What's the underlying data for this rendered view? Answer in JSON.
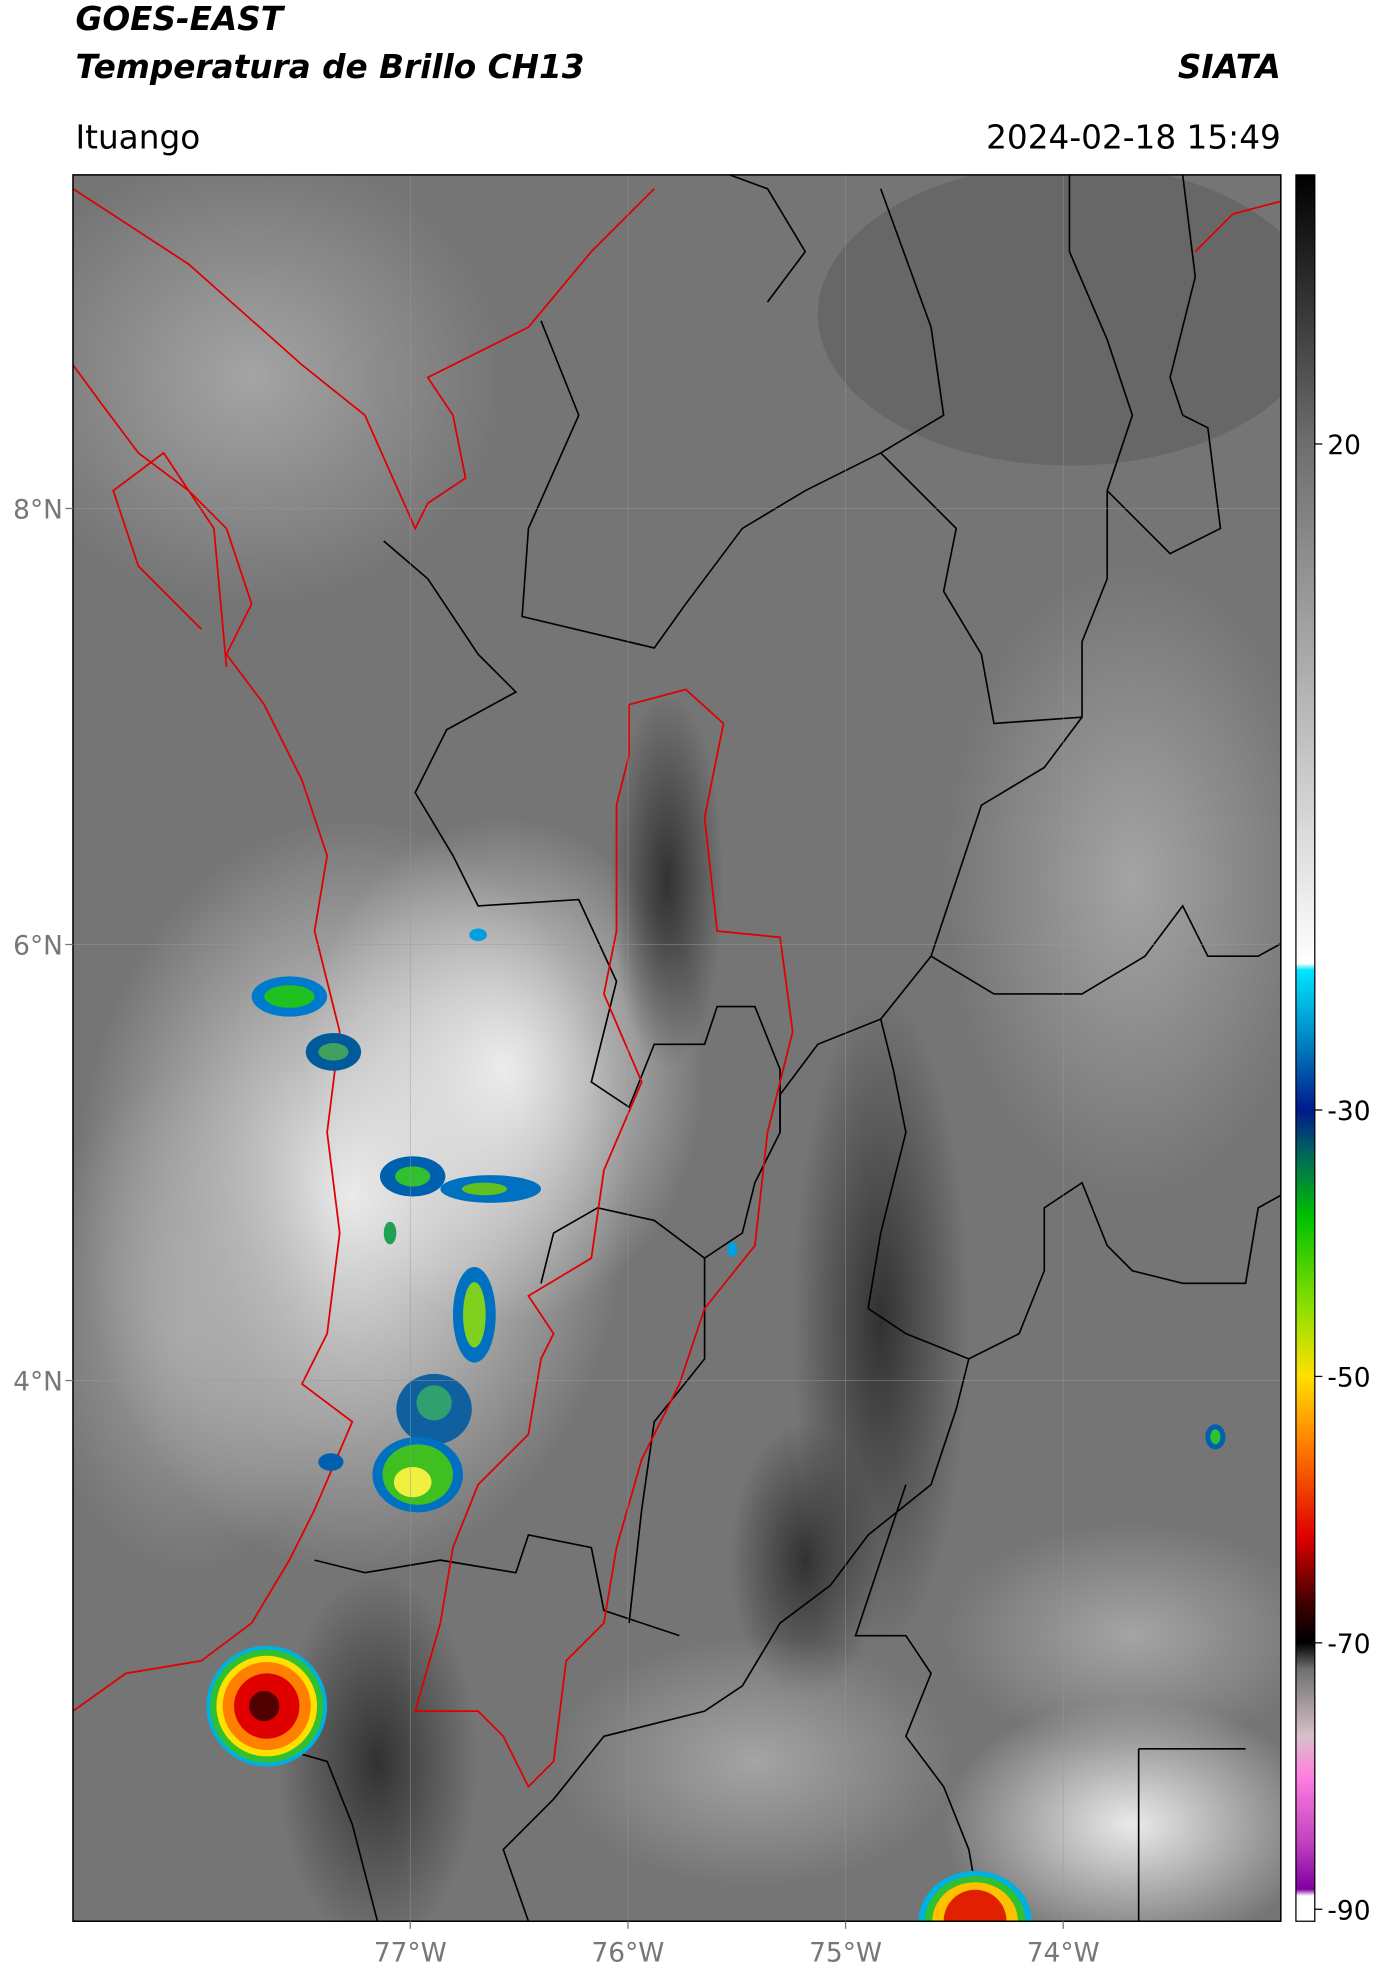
{
  "header": {
    "title": "GOES-EAST",
    "subtitle": "Temperatura de Brillo CH13",
    "source": "SIATA",
    "location": "Ituango",
    "datetime": "2024-02-18 15:49"
  },
  "map": {
    "xlim": [
      -78.55,
      -73.0
    ],
    "ylim": [
      1.52,
      9.53
    ],
    "xticks": [
      {
        "value": -77,
        "label": "77°W"
      },
      {
        "value": -76,
        "label": "76°W"
      },
      {
        "value": -75,
        "label": "75°W"
      },
      {
        "value": -74,
        "label": "74°W"
      }
    ],
    "yticks": [
      {
        "value": 8,
        "label": "8°N"
      },
      {
        "value": 6,
        "label": "6°N"
      },
      {
        "value": 4,
        "label": "4°N"
      }
    ],
    "grid": true
  },
  "colorbar": {
    "lim": [
      -90.9,
      40.2
    ],
    "ticks": [
      20,
      -30,
      -50,
      -70,
      -90
    ],
    "colormap": [
      [
        40.2,
        "#000000"
      ],
      [
        20,
        "#6e6e6e"
      ],
      [
        -19,
        "#ffffff"
      ],
      [
        -19.5,
        "#00e5ff"
      ],
      [
        -25,
        "#0080c0"
      ],
      [
        -30,
        "#001a8c"
      ],
      [
        -33,
        "#006060"
      ],
      [
        -38,
        "#00c000"
      ],
      [
        -45,
        "#90e000"
      ],
      [
        -50,
        "#ffe000"
      ],
      [
        -55,
        "#ff8000"
      ],
      [
        -62,
        "#e00000"
      ],
      [
        -67,
        "#400000"
      ],
      [
        -70,
        "#000000"
      ],
      [
        -72,
        "#707070"
      ],
      [
        -77,
        "#d8c0c8"
      ],
      [
        -80,
        "#ff80e0"
      ],
      [
        -85,
        "#c040c0"
      ],
      [
        -88.5,
        "#8000a0"
      ],
      [
        -89,
        "#ffffff"
      ],
      [
        -90.9,
        "#ffffff"
      ]
    ]
  }
}
